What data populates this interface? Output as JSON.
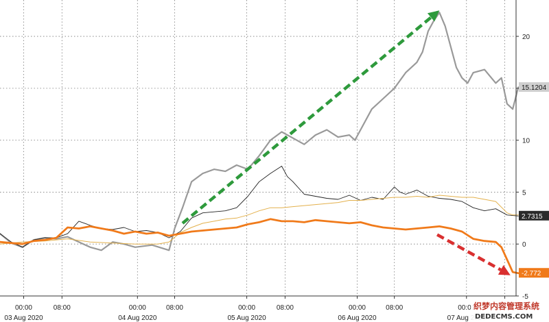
{
  "chart_data": {
    "type": "line",
    "title": "",
    "xlabel": "",
    "ylabel": "",
    "ylim": [
      -5,
      23.5
    ],
    "xlim": [
      0,
      4.58
    ],
    "grid": true,
    "y_ticks": [
      20,
      15,
      10,
      5,
      0,
      -5
    ],
    "x_ticks": [
      {
        "x": 0.21,
        "time": "00:00",
        "date": ""
      },
      {
        "x": 0.55,
        "time": "08:00",
        "date": ""
      },
      {
        "x": 1.22,
        "time": "00:00",
        "date": ""
      },
      {
        "x": 1.55,
        "time": "08:00",
        "date": ""
      },
      {
        "x": 2.19,
        "time": "00:00",
        "date": ""
      },
      {
        "x": 2.53,
        "time": "08:00",
        "date": ""
      },
      {
        "x": 3.17,
        "time": "00:00",
        "date": ""
      },
      {
        "x": 3.5,
        "time": "08:00",
        "date": ""
      },
      {
        "x": 4.14,
        "time": "00:00",
        "date": ""
      },
      {
        "x": 4.48,
        "time": "08:00",
        "date": ""
      }
    ],
    "date_labels": [
      {
        "x": 0.21,
        "label": "03 Aug 2020"
      },
      {
        "x": 1.22,
        "label": "04 Aug 2020"
      },
      {
        "x": 2.19,
        "label": "05 Aug 2020"
      },
      {
        "x": 3.17,
        "label": "06 Aug 2020"
      },
      {
        "x": 4.14,
        "label": "07 Aug 2020"
      }
    ],
    "series": [
      {
        "color": "#999999",
        "width": 2.2,
        "points": [
          [
            0,
            1
          ],
          [
            0.1,
            0.1
          ],
          [
            0.2,
            -0.3
          ],
          [
            0.3,
            0.4
          ],
          [
            0.4,
            0.6
          ],
          [
            0.5,
            0.5
          ],
          [
            0.6,
            0.7
          ],
          [
            0.7,
            0.2
          ],
          [
            0.8,
            -0.3
          ],
          [
            0.9,
            -0.6
          ],
          [
            1.0,
            0.2
          ],
          [
            1.1,
            0.0
          ],
          [
            1.2,
            -0.3
          ],
          [
            1.35,
            -0.1
          ],
          [
            1.5,
            -0.6
          ],
          [
            1.55,
            1.5
          ],
          [
            1.62,
            3.5
          ],
          [
            1.7,
            6.0
          ],
          [
            1.8,
            6.8
          ],
          [
            1.9,
            7.2
          ],
          [
            2.0,
            7.0
          ],
          [
            2.1,
            7.6
          ],
          [
            2.2,
            7.2
          ],
          [
            2.3,
            8.5
          ],
          [
            2.4,
            10.0
          ],
          [
            2.5,
            10.8
          ],
          [
            2.6,
            10.2
          ],
          [
            2.7,
            9.6
          ],
          [
            2.8,
            10.5
          ],
          [
            2.9,
            11.0
          ],
          [
            3.0,
            10.3
          ],
          [
            3.1,
            10.5
          ],
          [
            3.15,
            10.0
          ],
          [
            3.2,
            11.0
          ],
          [
            3.3,
            13.0
          ],
          [
            3.4,
            14.0
          ],
          [
            3.5,
            15.0
          ],
          [
            3.6,
            16.5
          ],
          [
            3.7,
            17.5
          ],
          [
            3.75,
            18.5
          ],
          [
            3.8,
            20.5
          ],
          [
            3.85,
            21.5
          ],
          [
            3.9,
            22.3
          ],
          [
            3.95,
            21.0
          ],
          [
            4.0,
            19.0
          ],
          [
            4.05,
            17.0
          ],
          [
            4.1,
            16.0
          ],
          [
            4.15,
            15.5
          ],
          [
            4.2,
            16.5
          ],
          [
            4.3,
            16.8
          ],
          [
            4.4,
            15.5
          ],
          [
            4.45,
            16.0
          ],
          [
            4.5,
            13.5
          ],
          [
            4.55,
            13.0
          ],
          [
            4.6,
            15.1
          ]
        ]
      },
      {
        "color": "#222222",
        "width": 0.9,
        "points": [
          [
            0,
            1
          ],
          [
            0.1,
            0.2
          ],
          [
            0.2,
            -0.3
          ],
          [
            0.3,
            0.4
          ],
          [
            0.4,
            0.6
          ],
          [
            0.5,
            0.6
          ],
          [
            0.6,
            1.0
          ],
          [
            0.7,
            2.2
          ],
          [
            0.8,
            1.8
          ],
          [
            0.9,
            1.5
          ],
          [
            1.0,
            1.4
          ],
          [
            1.1,
            1.6
          ],
          [
            1.2,
            1.2
          ],
          [
            1.3,
            1.3
          ],
          [
            1.4,
            1.1
          ],
          [
            1.5,
            0.6
          ],
          [
            1.6,
            1.2
          ],
          [
            1.7,
            2.5
          ],
          [
            1.8,
            3.0
          ],
          [
            1.9,
            3.1
          ],
          [
            2.0,
            3.2
          ],
          [
            2.1,
            3.5
          ],
          [
            2.2,
            4.6
          ],
          [
            2.3,
            6.0
          ],
          [
            2.4,
            6.8
          ],
          [
            2.5,
            7.5
          ],
          [
            2.55,
            6.5
          ],
          [
            2.6,
            6.0
          ],
          [
            2.7,
            4.8
          ],
          [
            2.8,
            4.6
          ],
          [
            2.9,
            4.4
          ],
          [
            3.0,
            4.3
          ],
          [
            3.1,
            4.7
          ],
          [
            3.2,
            4.2
          ],
          [
            3.3,
            4.5
          ],
          [
            3.4,
            4.3
          ],
          [
            3.5,
            5.5
          ],
          [
            3.55,
            5.0
          ],
          [
            3.6,
            4.8
          ],
          [
            3.7,
            5.2
          ],
          [
            3.8,
            4.6
          ],
          [
            3.9,
            4.4
          ],
          [
            4.0,
            4.3
          ],
          [
            4.1,
            4.1
          ],
          [
            4.2,
            3.5
          ],
          [
            4.3,
            3.2
          ],
          [
            4.4,
            3.4
          ],
          [
            4.5,
            2.8
          ],
          [
            4.6,
            2.7
          ]
        ]
      },
      {
        "color": "#e3b04b",
        "width": 1.0,
        "points": [
          [
            0,
            0.0
          ],
          [
            0.2,
            0.2
          ],
          [
            0.4,
            0.3
          ],
          [
            0.6,
            0.5
          ],
          [
            0.8,
            0.2
          ],
          [
            1.0,
            0.1
          ],
          [
            1.2,
            0.0
          ],
          [
            1.4,
            0.0
          ],
          [
            1.5,
            0.2
          ],
          [
            1.6,
            1.1
          ],
          [
            1.7,
            1.6
          ],
          [
            1.8,
            2.0
          ],
          [
            1.9,
            2.2
          ],
          [
            2.0,
            2.4
          ],
          [
            2.1,
            2.5
          ],
          [
            2.2,
            2.8
          ],
          [
            2.3,
            3.2
          ],
          [
            2.4,
            3.5
          ],
          [
            2.5,
            3.5
          ],
          [
            2.6,
            3.6
          ],
          [
            2.7,
            3.7
          ],
          [
            2.8,
            3.8
          ],
          [
            2.9,
            3.9
          ],
          [
            3.0,
            4.0
          ],
          [
            3.1,
            4.2
          ],
          [
            3.2,
            4.2
          ],
          [
            3.3,
            4.3
          ],
          [
            3.4,
            4.4
          ],
          [
            3.5,
            4.5
          ],
          [
            3.6,
            4.5
          ],
          [
            3.7,
            4.6
          ],
          [
            3.8,
            4.5
          ],
          [
            3.9,
            4.7
          ],
          [
            4.0,
            4.6
          ],
          [
            4.1,
            4.5
          ],
          [
            4.2,
            4.5
          ],
          [
            4.3,
            4.3
          ],
          [
            4.4,
            4.1
          ],
          [
            4.5,
            3.0
          ],
          [
            4.55,
            2.8
          ],
          [
            4.6,
            2.8
          ]
        ]
      },
      {
        "color": "#f07a1a",
        "width": 2.8,
        "points": [
          [
            0,
            0.2
          ],
          [
            0.1,
            0.1
          ],
          [
            0.2,
            0.0
          ],
          [
            0.3,
            0.3
          ],
          [
            0.4,
            0.4
          ],
          [
            0.5,
            0.6
          ],
          [
            0.6,
            1.6
          ],
          [
            0.7,
            1.5
          ],
          [
            0.8,
            1.7
          ],
          [
            0.9,
            1.5
          ],
          [
            1.0,
            1.3
          ],
          [
            1.1,
            1.0
          ],
          [
            1.2,
            1.2
          ],
          [
            1.3,
            1.0
          ],
          [
            1.4,
            1.1
          ],
          [
            1.5,
            0.8
          ],
          [
            1.6,
            1.0
          ],
          [
            1.7,
            1.2
          ],
          [
            1.8,
            1.3
          ],
          [
            1.9,
            1.4
          ],
          [
            2.0,
            1.5
          ],
          [
            2.1,
            1.6
          ],
          [
            2.2,
            1.9
          ],
          [
            2.3,
            2.1
          ],
          [
            2.4,
            2.4
          ],
          [
            2.5,
            2.2
          ],
          [
            2.6,
            2.2
          ],
          [
            2.7,
            2.1
          ],
          [
            2.8,
            2.3
          ],
          [
            2.9,
            2.2
          ],
          [
            3.0,
            2.1
          ],
          [
            3.1,
            2.0
          ],
          [
            3.2,
            2.1
          ],
          [
            3.3,
            1.8
          ],
          [
            3.4,
            1.6
          ],
          [
            3.5,
            1.5
          ],
          [
            3.6,
            1.4
          ],
          [
            3.7,
            1.5
          ],
          [
            3.8,
            1.6
          ],
          [
            3.9,
            1.7
          ],
          [
            4.0,
            1.5
          ],
          [
            4.1,
            1.2
          ],
          [
            4.2,
            0.5
          ],
          [
            4.3,
            0.3
          ],
          [
            4.4,
            0.2
          ],
          [
            4.45,
            -0.3
          ],
          [
            4.5,
            -1.5
          ],
          [
            4.55,
            -2.7
          ],
          [
            4.6,
            -2.8
          ]
        ]
      }
    ],
    "annotations": [
      {
        "type": "arrow",
        "color": "#2e9a3c",
        "from": [
          1.62,
          2.0
        ],
        "to": [
          3.9,
          22.5
        ]
      },
      {
        "type": "arrow",
        "color": "#d93030",
        "from": [
          3.88,
          0.9
        ],
        "to": [
          4.53,
          -3.0
        ]
      }
    ],
    "value_labels": [
      {
        "y": 15.1204,
        "text": "15.1204",
        "bg": "#cfcfcf",
        "fg": "#111111"
      },
      {
        "y": 2.7315,
        "text": "2.7315",
        "bg": "#2b2b2b",
        "fg": "#ffffff"
      },
      {
        "y": -2.772,
        "text": "-2.772",
        "bg": "#f07a1a",
        "fg": "#ffffff"
      }
    ]
  },
  "watermark": {
    "line1": "织梦内容管理系统",
    "line2": "DEDECMS.COM"
  }
}
